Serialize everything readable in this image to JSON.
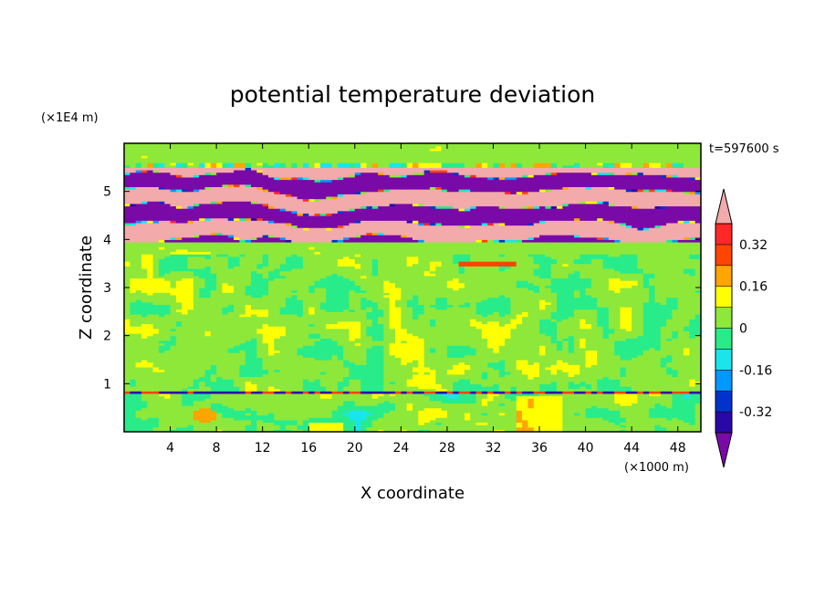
{
  "chart_data": {
    "type": "heatmap",
    "title": "potential temperature deviation",
    "xlabel": "X coordinate",
    "ylabel": "Z coordinate",
    "x_unit": "(×1000 m)",
    "y_unit": "(×1E4 m)",
    "time_label": "t=597600 s",
    "xlim": [
      0,
      50
    ],
    "ylim": [
      0,
      6
    ],
    "x_ticks": [
      4,
      8,
      12,
      16,
      20,
      24,
      28,
      32,
      36,
      40,
      44,
      48
    ],
    "y_ticks": [
      1,
      2,
      3,
      4,
      5
    ],
    "colorbar": {
      "levels": [
        -0.4,
        -0.32,
        -0.24,
        -0.16,
        -0.08,
        0,
        0.08,
        0.16,
        0.24,
        0.32,
        0.4
      ],
      "tick_labels": [
        "-0.32",
        "-0.16",
        "0",
        "0.16",
        "0.32"
      ],
      "colors": [
        "#7a0aa8",
        "#2a08a8",
        "#0033cc",
        "#0099ff",
        "#19e6ec",
        "#28ec8a",
        "#8ee83a",
        "#ffff00",
        "#ffa500",
        "#ff4500",
        "#ff2828",
        "#f2aaaa"
      ],
      "extend": "both"
    },
    "bands": [
      {
        "z_range": [
          0.0,
          0.8
        ],
        "dominant": 0.02,
        "pattern": "mixed"
      },
      {
        "z_range": [
          0.8,
          0.85
        ],
        "dominant": -0.35,
        "pattern": "thin inversion layer"
      },
      {
        "z_range": [
          0.85,
          3.7
        ],
        "dominant": 0.03,
        "pattern": "noisy mixed"
      },
      {
        "z_range": [
          3.7,
          3.95
        ],
        "dominant": 0.05,
        "pattern": "smooth"
      },
      {
        "z_range": [
          3.95,
          5.5
        ],
        "dominant": 0.45,
        "pattern": "alternating stripes of ±0.45"
      },
      {
        "z_range": [
          5.5,
          6.0
        ],
        "dominant": 0.05,
        "pattern": "smooth"
      }
    ]
  }
}
